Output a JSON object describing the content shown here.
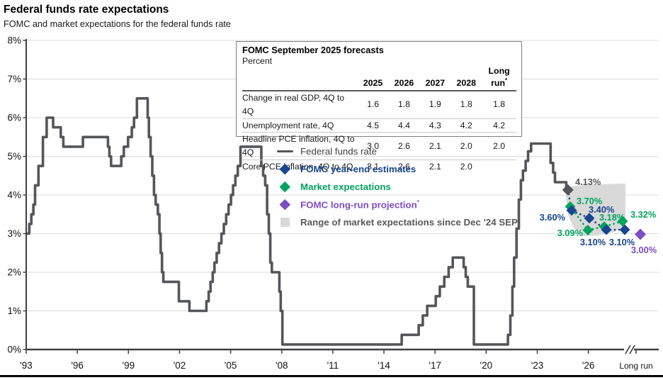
{
  "header": {
    "title": "Federal funds rate expectations",
    "subtitle": "FOMC and market expectations for the federal funds rate"
  },
  "colors": {
    "line_gray": "#54565A",
    "fomc_navy": "#17458F",
    "market_green": "#00A45F",
    "longrun_purple": "#7C4DC4",
    "range_gray": "#D9D9D9",
    "gridline": "#DBDBDB",
    "axis": "#404042"
  },
  "forecast_table": {
    "title": "FOMC September 2025 forecasts",
    "unit_label": "Percent",
    "columns": [
      "2025",
      "2026",
      "2027",
      "2028",
      "Long run*"
    ],
    "rows": [
      {
        "label": "Change in real GDP, 4Q to 4Q",
        "values": [
          "1.6",
          "1.8",
          "1.9",
          "1.8",
          "1.8"
        ]
      },
      {
        "label": "Unemployment rate, 4Q",
        "values": [
          "4.5",
          "4.4",
          "4.3",
          "4.2",
          "4.2"
        ]
      },
      {
        "label": "Headline PCE inflation, 4Q to 4Q",
        "values": [
          "3.0",
          "2.6",
          "2.1",
          "2.0",
          "2.0"
        ]
      },
      {
        "label": "Core PCE inflation, 4Q to 4Q",
        "values": [
          "3.1",
          "2.6",
          "2.1",
          "2.0",
          ""
        ]
      }
    ]
  },
  "legend": [
    {
      "label": "Federal funds rate",
      "symbol": "line",
      "color": "#54565A",
      "text_color": "#414042"
    },
    {
      "label": "FOMC year-end estimates",
      "symbol": "diamond",
      "color": "#17458F",
      "text_color": "#17458F"
    },
    {
      "label": "Market expectations",
      "symbol": "diamond",
      "color": "#00A45F",
      "text_color": "#00A45F"
    },
    {
      "label": "FOMC long-run projection*",
      "symbol": "diamond",
      "color": "#7C4DC4",
      "text_color": "#7C4DC4"
    },
    {
      "label": "Range of market expectations since Dec '24 SEP",
      "symbol": "square",
      "color": "#D9D9D9",
      "text_color": "#58595B"
    }
  ],
  "chart_data": {
    "type": "line",
    "line_style": "step",
    "title": "Federal funds rate expectations",
    "ylabel": "Percent",
    "ylim": [
      0,
      8
    ],
    "grid": true,
    "y_ticks": [
      "8%",
      "7%",
      "6%",
      "5%",
      "4%",
      "3%",
      "2%",
      "1%",
      "0%"
    ],
    "x_ticks": [
      "'93",
      "'96",
      "'99",
      "'02",
      "'05",
      "'08",
      "'11",
      "'14",
      "'17",
      "'20",
      "'23",
      "'26",
      "Long run"
    ],
    "federal_funds_rate": {
      "name": "Federal funds rate",
      "end_label": "4.13%",
      "end_value": 4.13,
      "points": [
        [
          1993.0,
          3.0
        ],
        [
          1994.1,
          3.25
        ],
        [
          1994.22,
          3.5
        ],
        [
          1994.34,
          3.75
        ],
        [
          1994.44,
          4.25
        ],
        [
          1994.64,
          4.75
        ],
        [
          1994.9,
          5.5
        ],
        [
          1995.12,
          6.0
        ],
        [
          1995.5,
          5.75
        ],
        [
          1995.95,
          5.5
        ],
        [
          1996.1,
          5.25
        ],
        [
          1997.25,
          5.5
        ],
        [
          1998.72,
          5.25
        ],
        [
          1998.8,
          5.0
        ],
        [
          1998.9,
          4.75
        ],
        [
          1999.5,
          5.0
        ],
        [
          1999.65,
          5.25
        ],
        [
          1999.9,
          5.5
        ],
        [
          2000.12,
          5.75
        ],
        [
          2000.25,
          6.0
        ],
        [
          2000.42,
          6.5
        ],
        [
          2001.05,
          6.0
        ],
        [
          2001.12,
          5.5
        ],
        [
          2001.22,
          5.0
        ],
        [
          2001.32,
          4.5
        ],
        [
          2001.42,
          4.0
        ],
        [
          2001.52,
          3.75
        ],
        [
          2001.65,
          3.5
        ],
        [
          2001.74,
          3.0
        ],
        [
          2001.81,
          2.5
        ],
        [
          2001.89,
          2.0
        ],
        [
          2001.97,
          1.75
        ],
        [
          2002.88,
          1.25
        ],
        [
          2003.5,
          1.0
        ],
        [
          2004.5,
          1.25
        ],
        [
          2004.63,
          1.5
        ],
        [
          2004.74,
          1.75
        ],
        [
          2004.87,
          2.0
        ],
        [
          2004.97,
          2.25
        ],
        [
          2005.1,
          2.5
        ],
        [
          2005.24,
          2.75
        ],
        [
          2005.38,
          3.0
        ],
        [
          2005.52,
          3.25
        ],
        [
          2005.66,
          3.5
        ],
        [
          2005.8,
          3.75
        ],
        [
          2005.94,
          4.0
        ],
        [
          2006.06,
          4.25
        ],
        [
          2006.2,
          4.5
        ],
        [
          2006.34,
          4.75
        ],
        [
          2006.5,
          5.25
        ],
        [
          2007.72,
          4.75
        ],
        [
          2007.83,
          4.5
        ],
        [
          2007.95,
          4.25
        ],
        [
          2008.06,
          3.5
        ],
        [
          2008.16,
          3.0
        ],
        [
          2008.25,
          2.25
        ],
        [
          2008.34,
          2.0
        ],
        [
          2008.78,
          1.5
        ],
        [
          2008.86,
          1.0
        ],
        [
          2008.96,
          0.13
        ],
        [
          2015.96,
          0.38
        ],
        [
          2016.96,
          0.63
        ],
        [
          2017.2,
          0.88
        ],
        [
          2017.46,
          1.13
        ],
        [
          2017.96,
          1.38
        ],
        [
          2018.2,
          1.63
        ],
        [
          2018.46,
          1.88
        ],
        [
          2018.72,
          2.13
        ],
        [
          2018.96,
          2.38
        ],
        [
          2019.6,
          2.13
        ],
        [
          2019.72,
          1.88
        ],
        [
          2019.84,
          1.63
        ],
        [
          2020.2,
          0.13
        ],
        [
          2022.2,
          0.38
        ],
        [
          2022.34,
          0.88
        ],
        [
          2022.46,
          1.63
        ],
        [
          2022.56,
          2.38
        ],
        [
          2022.7,
          3.13
        ],
        [
          2022.84,
          3.88
        ],
        [
          2022.96,
          4.38
        ],
        [
          2023.08,
          4.63
        ],
        [
          2023.24,
          4.88
        ],
        [
          2023.38,
          5.13
        ],
        [
          2023.56,
          5.33
        ],
        [
          2024.7,
          4.83
        ],
        [
          2024.85,
          4.58
        ],
        [
          2024.96,
          4.33
        ],
        [
          2025.62,
          4.13
        ],
        [
          2025.72,
          4.13
        ]
      ]
    },
    "fomc_estimates": [
      {
        "year": "2025",
        "value": 3.6,
        "label": "3.60%"
      },
      {
        "year": "2026",
        "value": 3.4,
        "label": "3.40%"
      },
      {
        "year": "2027",
        "value": 3.1,
        "label": "3.10%"
      },
      {
        "year": "2028",
        "value": 3.1,
        "label": "3.10%"
      }
    ],
    "market_expectations": [
      {
        "year": "2025",
        "value": 3.7,
        "label": "3.70%"
      },
      {
        "year": "2026",
        "value": 3.09,
        "label": "3.09%"
      },
      {
        "year": "2027",
        "value": 3.18,
        "label": "3.18%"
      },
      {
        "year": "2028",
        "value": 3.32,
        "label": "3.32%"
      }
    ],
    "long_run_projection": {
      "year": "Long run",
      "value": 3.0,
      "label": "3.00%"
    },
    "range_band": {
      "note": "Range of market expectations since Dec '24 SEP",
      "polygon": [
        [
          802,
          263
        ],
        [
          840,
          260
        ],
        [
          883,
          259
        ],
        [
          883,
          316
        ],
        [
          868,
          327
        ],
        [
          845,
          332
        ],
        [
          824,
          333
        ],
        [
          810,
          322
        ],
        [
          802,
          303
        ],
        [
          799,
          278
        ]
      ]
    }
  }
}
